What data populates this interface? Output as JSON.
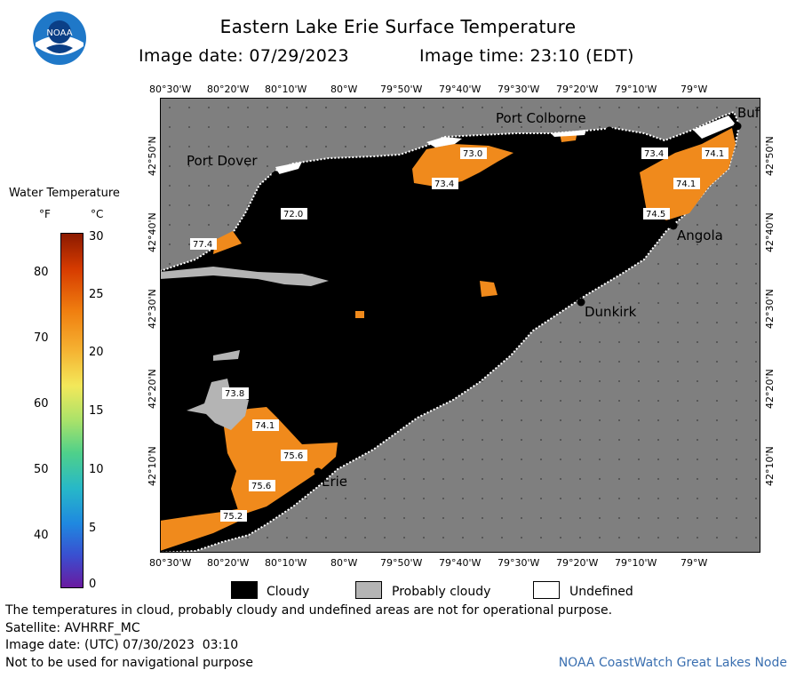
{
  "header": {
    "title": "Eastern Lake Erie Surface Temperature",
    "image_date": "Image date: 07/29/2023",
    "image_time": "Image time: 23:10 (EDT)"
  },
  "logo": {
    "text": "NOAA"
  },
  "legend": {
    "title": "Water Temperature",
    "unit_f": "°F",
    "unit_c": "°C",
    "f_labels": [
      "80",
      "70",
      "60",
      "50",
      "40"
    ],
    "c_labels": [
      "30",
      "25",
      "20",
      "15",
      "10",
      "5",
      "0"
    ]
  },
  "map": {
    "lon_labels": [
      "80°30'W",
      "80°20'W",
      "80°10'W",
      "80°W",
      "79°50'W",
      "79°40'W",
      "79°30'W",
      "79°20'W",
      "79°10'W",
      "79°W"
    ],
    "lat_labels": [
      "42°50'N",
      "42°40'N",
      "42°30'N",
      "42°20'N",
      "42°10'N"
    ],
    "places": {
      "port_colborne": "Port Colborne",
      "port_dover": "Port Dover",
      "angola": "Angola",
      "dunkirk": "Dunkirk",
      "erie": "Erie",
      "buffalo": "Buf"
    },
    "temps": {
      "t1": "73.0",
      "t2": "73.4",
      "t3": "73.4",
      "t4": "74.1",
      "t5": "74.1",
      "t6": "74.5",
      "t7": "72.0",
      "t8": "77.4",
      "t9": "73.8",
      "t10": "74.1",
      "t11": "75.6",
      "t12": "75.6",
      "t13": "75.2"
    }
  },
  "cloud_legend": {
    "cloudy": "Cloudy",
    "probably_cloudy": "Probably cloudy",
    "undefined": "Undefined"
  },
  "footer": {
    "disclaimer": "The temperatures in cloud, probably cloudy and undefined areas are not for operational purpose.",
    "satellite": "Satellite: AVHRRF_MC",
    "utc_date": "Image date: (UTC) 07/30/2023  03:10",
    "nav": "Not to be used for navigational purpose",
    "credit": "NOAA CoastWatch Great Lakes Node"
  },
  "colors": {
    "land": "#7f7f7f",
    "cloud": "#000000",
    "water_warm": "#f08a1c",
    "probably_cloudy": "#b4b4b4",
    "credit": "#3a6fb0"
  }
}
